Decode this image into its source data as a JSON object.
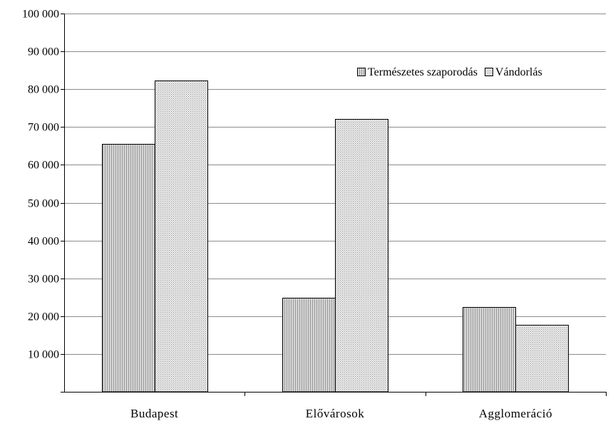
{
  "chart_data": {
    "type": "bar",
    "categories": [
      "Budapest",
      "Elővárosok",
      "Agglomeráció"
    ],
    "series": [
      {
        "name": "Természetes szaporodás",
        "values": [
          65500,
          24800,
          22500
        ]
      },
      {
        "name": "Vándorlás",
        "values": [
          82300,
          72100,
          17700
        ]
      }
    ],
    "ylim": [
      0,
      100000
    ],
    "yticks": [
      10000,
      20000,
      30000,
      40000,
      50000,
      60000,
      70000,
      80000,
      90000,
      100000
    ],
    "ytick_labels": [
      "10 000",
      "20 000",
      "30 000",
      "40 000",
      "50 000",
      "60 000",
      "70 000",
      "80 000",
      "90 000",
      "100 000"
    ],
    "grid": true,
    "legend": "top-right",
    "title": "",
    "xlabel": "",
    "ylabel": ""
  }
}
